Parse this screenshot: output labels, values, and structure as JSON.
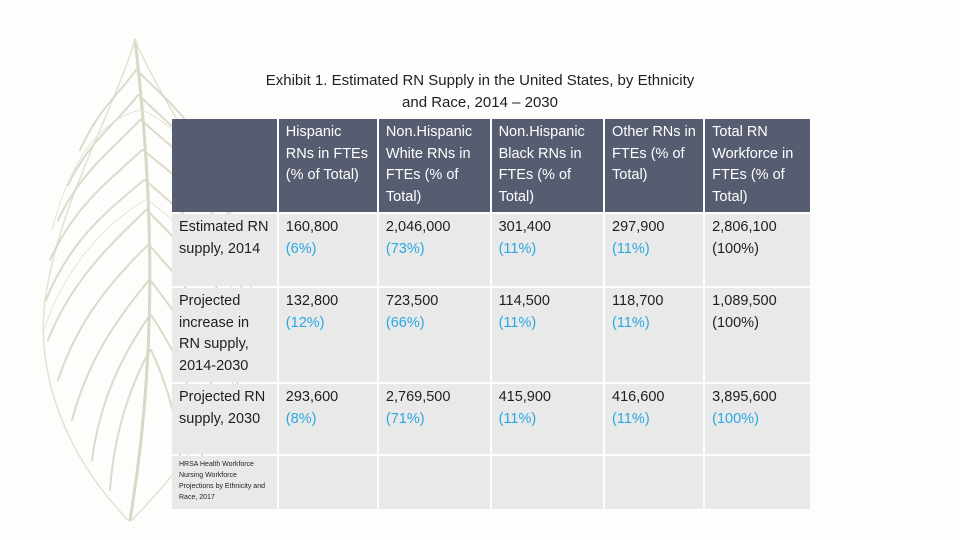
{
  "title": {
    "line1": "Exhibit 1. Estimated RN Supply in the United States, by Ethnicity",
    "line2": "and Race, 2014 – 2030"
  },
  "table": {
    "headers": [
      "",
      "Hispanic RNs in FTEs (% of Total)",
      "Non.Hispanic White RNs in FTEs (% of Total)",
      "Non.Hispanic Black RNs in FTEs (% of Total)",
      "Other RNs in FTEs (% of Total)",
      "Total RN Workforce in FTEs (% of Total)"
    ],
    "rows": [
      {
        "label": "Estimated RN supply, 2014",
        "cells": [
          {
            "value": "160,800",
            "pct": "(6%)"
          },
          {
            "value": "2,046,000",
            "pct": "(73%)"
          },
          {
            "value": "301,400",
            "pct": "(11%)"
          },
          {
            "value": "297,900",
            "pct": "(11%)"
          },
          {
            "value": "2,806,100",
            "pct": "(100%)"
          }
        ]
      },
      {
        "label": "Projected increase in RN supply, 2014-2030",
        "cells": [
          {
            "value": "132,800",
            "pct": "(12%)"
          },
          {
            "value": "723,500",
            "pct": "(66%)"
          },
          {
            "value": "114,500",
            "pct": "(11%)"
          },
          {
            "value": "118,700",
            "pct": "(11%)"
          },
          {
            "value": "1,089,500",
            "pct": "(100%)"
          }
        ]
      },
      {
        "label": "Projected RN supply, 2030",
        "cells": [
          {
            "value": "293,600",
            "pct": "(8%)"
          },
          {
            "value": "2,769,500",
            "pct": "(71%)"
          },
          {
            "value": "415,900",
            "pct": "(11%)"
          },
          {
            "value": "416,600",
            "pct": "(11%)"
          },
          {
            "value": "3,895,600",
            "pct": "(100%)"
          }
        ]
      }
    ],
    "source_note": "HRSA Health Workforce Nursing Workforce Projections by Ethnicity and Race, 2017"
  },
  "colors": {
    "header_bg": "#575d70",
    "cell_bg": "#e9e9e9",
    "percent_text": "#2aa8e0",
    "feather": "#d9d7c6"
  }
}
